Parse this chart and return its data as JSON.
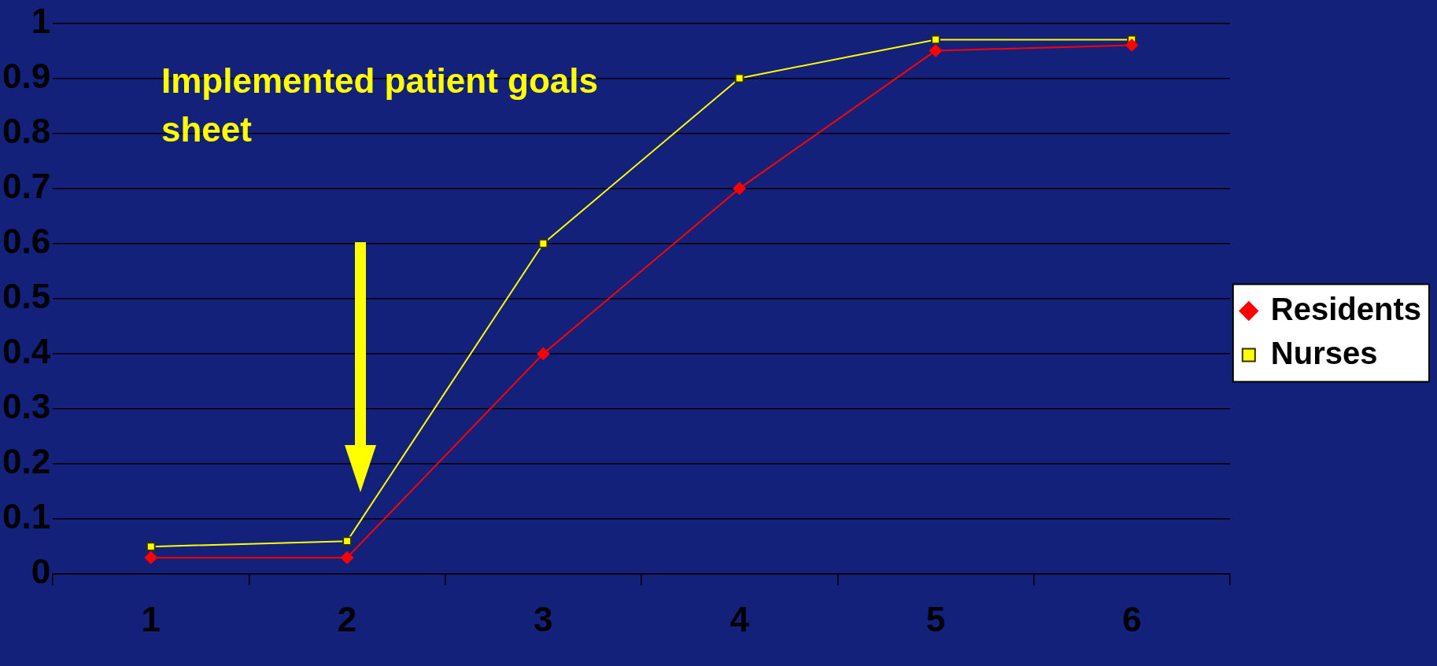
{
  "chart_data": {
    "type": "line",
    "categories": [
      "1",
      "2",
      "3",
      "4",
      "5",
      "6"
    ],
    "series": [
      {
        "name": "Residents",
        "color": "#ff0000",
        "marker": "diamond",
        "values": [
          0.03,
          0.03,
          0.4,
          0.7,
          0.95,
          0.96
        ]
      },
      {
        "name": "Nurses",
        "color": "#ffff00",
        "marker": "square",
        "values": [
          0.05,
          0.06,
          0.6,
          0.9,
          0.97,
          0.97
        ]
      }
    ],
    "ylim": [
      0,
      1
    ],
    "yticks": [
      0,
      0.1,
      0.2,
      0.3,
      0.4,
      0.5,
      0.6,
      0.7,
      0.8,
      0.9,
      1
    ],
    "grid": "y",
    "legend": "right",
    "line_style": "solid",
    "annotations": [
      "Implemented patient goals sheet"
    ]
  }
}
